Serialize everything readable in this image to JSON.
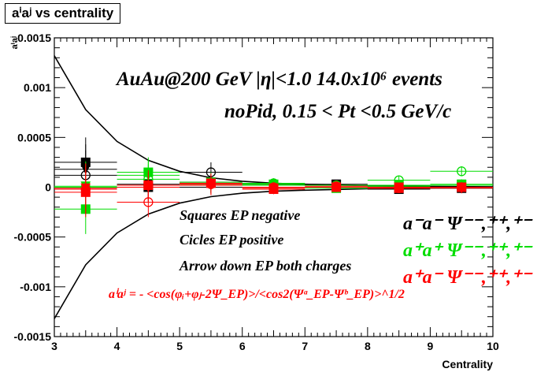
{
  "chart_data": {
    "type": "scatter",
    "title": "aⁱaʲ vs centrality",
    "xlabel": "Centrality",
    "ylabel": "aⁱaʲ",
    "xlim": [
      3,
      10
    ],
    "ylim": [
      -0.0015,
      0.0015
    ],
    "x_ticks": [
      "3",
      "4",
      "5",
      "6",
      "7",
      "8",
      "9",
      "10"
    ],
    "y_ticks": [
      "-0.0015",
      "-0.001",
      "-0.0005",
      "0",
      "0.0005",
      "0.001",
      "0.0015"
    ],
    "grid": false,
    "x": [
      3.5,
      4.5,
      5.5,
      6.5,
      7.5,
      8.5,
      9.5
    ],
    "envelope": {
      "upper": [
        [
          3.0,
          0.00132
        ],
        [
          3.5,
          0.00078
        ],
        [
          4.0,
          0.00046
        ],
        [
          4.5,
          0.00027
        ],
        [
          5.0,
          0.00016
        ],
        [
          5.5,
          9.5e-05
        ],
        [
          6.0,
          6e-05
        ],
        [
          6.5,
          4e-05
        ],
        [
          7.0,
          3e-05
        ],
        [
          8.0,
          1.5e-05
        ],
        [
          9.0,
          8e-06
        ],
        [
          10.0,
          5e-06
        ]
      ],
      "lower": [
        [
          3.0,
          -0.00132
        ],
        [
          3.5,
          -0.00078
        ],
        [
          4.0,
          -0.00046
        ],
        [
          4.5,
          -0.00027
        ],
        [
          5.0,
          -0.00016
        ],
        [
          5.5,
          -9.5e-05
        ],
        [
          6.0,
          -6e-05
        ],
        [
          6.5,
          -4e-05
        ],
        [
          7.0,
          -3e-05
        ],
        [
          8.0,
          -1.5e-05
        ],
        [
          9.0,
          -8e-06
        ],
        [
          10.0,
          -5e-06
        ]
      ]
    },
    "series": [
      {
        "group": "a-a-",
        "marker": "square",
        "color": "#000000",
        "values": [
          0.00025,
          0.0,
          5e-05,
          2e-05,
          3e-05,
          -2e-05,
          -1e-05
        ]
      },
      {
        "group": "a-a-",
        "marker": "circle",
        "color": "#000000",
        "values": [
          0.00012,
          2e-05,
          0.00015,
          3e-05,
          2e-05,
          1e-05,
          0.0
        ]
      },
      {
        "group": "a-a-",
        "marker": "triangle-down",
        "color": "#000000",
        "values": [
          0.00018,
          3e-05,
          4e-05,
          2e-05,
          2e-05,
          0.0,
          0.0
        ]
      },
      {
        "group": "a+a+",
        "marker": "square",
        "color": "#00dd00",
        "values": [
          -0.00022,
          0.00015,
          5e-05,
          2e-05,
          -1e-05,
          1e-05,
          3e-05
        ]
      },
      {
        "group": "a+a+",
        "marker": "circle",
        "color": "#00dd00",
        "values": [
          0.0,
          8e-05,
          3e-05,
          4e-05,
          2e-05,
          7e-05,
          0.00016
        ]
      },
      {
        "group": "a+a+",
        "marker": "triangle-down",
        "color": "#00dd00",
        "values": [
          1e-05,
          0.00012,
          4e-05,
          3e-05,
          0.0,
          2e-05,
          2e-05
        ]
      },
      {
        "group": "a+a-",
        "marker": "square",
        "color": "#ff0000",
        "values": [
          -5e-05,
          2e-05,
          4e-05,
          -2e-05,
          0.0,
          -1e-05,
          0.0
        ]
      },
      {
        "group": "a+a-",
        "marker": "circle",
        "color": "#ff0000",
        "values": [
          -2e-05,
          -0.00015,
          3e-05,
          0.0,
          1e-05,
          -1e-05,
          0.0
        ]
      },
      {
        "group": "a+a-",
        "marker": "triangle-down",
        "color": "#ff0000",
        "values": [
          -1e-05,
          0.0,
          2e-05,
          -1e-05,
          0.0,
          0.0,
          -1e-05
        ]
      }
    ],
    "errors": [
      0.00025,
      0.00015,
      0.0001,
      5e-05,
      4e-05,
      4e-05,
      5e-05
    ],
    "annotations": {
      "line1": "AuAu@200 GeV |η|<1.0 14.0x10⁶ events",
      "line2": "noPid, 0.15 < Pt <0.5 GeV/c",
      "squares": "Squares EP negative",
      "circles": "Cicles EP positive",
      "arrows": "Arrow down EP both charges",
      "formula": "aⁱaʲ = - <cos(φᵢ+φⱼ-2Ψ_EP)>/<cos2(Ψᵃ_EP-Ψᵇ_EP)>^1/2"
    },
    "legend": {
      "placement": "right",
      "entries": [
        {
          "label": "a⁻a⁻  Ψ⁻⁻,⁺⁺,⁺⁻",
          "color": "#000000"
        },
        {
          "label": "a⁺a⁺  Ψ⁻⁻,⁺⁺,⁺⁻",
          "color": "#00dd00"
        },
        {
          "label": "a⁺a⁻  Ψ⁻⁻,⁺⁺,⁺⁻",
          "color": "#ff0000"
        }
      ]
    }
  }
}
